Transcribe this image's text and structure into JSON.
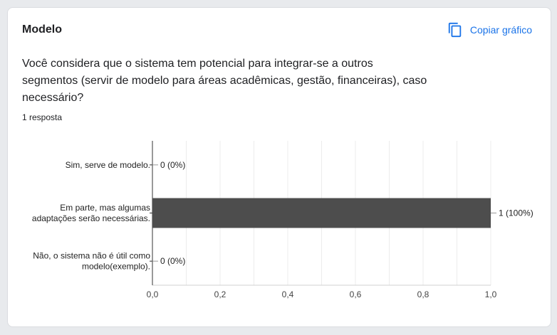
{
  "card": {
    "title": "Modelo",
    "copy_label": "Copiar gráfico",
    "question": "Você considera que o sistema tem potencial  para integrar-se a outros segmentos (servir de modelo para áreas acadêmicas, gestão, financeiras), caso necessário?",
    "response_count": "1 resposta"
  },
  "colors": {
    "accent": "#1a73e8",
    "bar": "#4d4d4d",
    "grid": "#ececec",
    "text": "#202124"
  },
  "icons": {
    "copy": "copy-icon"
  },
  "chart_data": {
    "type": "bar",
    "orientation": "horizontal",
    "categories": [
      [
        "Sim, serve de modelo."
      ],
      [
        "Em parte, mas algumas",
        "adaptações serão necessárias."
      ],
      [
        "Não, o sistema não é útil como",
        "modelo(exemplo)."
      ]
    ],
    "values": [
      0,
      1,
      0
    ],
    "data_labels": [
      "0 (0%)",
      "1 (100%)",
      "0 (0%)"
    ],
    "xlim": [
      0,
      1
    ],
    "ticks": [
      0,
      0.2,
      0.4,
      0.6,
      0.8,
      1.0
    ],
    "tick_labels": [
      "0,0",
      "0,2",
      "0,4",
      "0,6",
      "0,8",
      "1,0"
    ],
    "grid": true,
    "legend": "none"
  }
}
